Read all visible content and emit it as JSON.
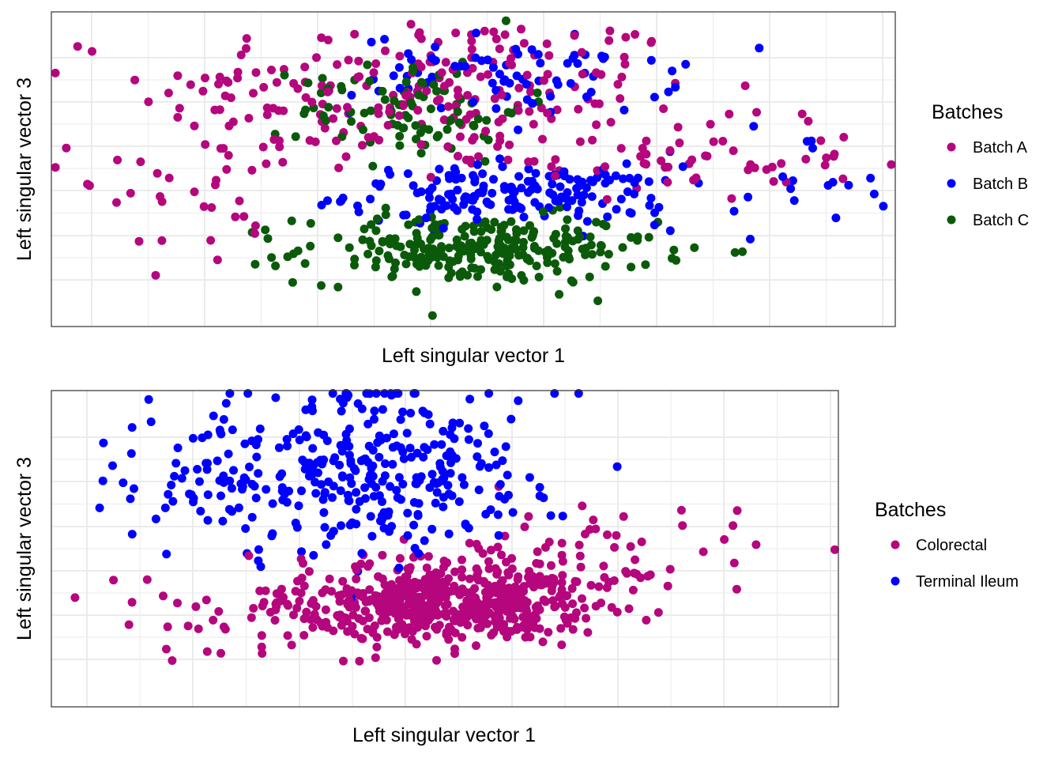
{
  "colors": {
    "magenta": "#B5067D",
    "blue": "#0000FF",
    "green": "#0A5A0A",
    "grid": "#EBEBEB",
    "border": "#333333"
  },
  "chart_data": [
    {
      "type": "scatter",
      "xlabel": "Left singular vector 1",
      "ylabel": "Left singular vector 3",
      "legend": {
        "title": "Batches",
        "position": "right"
      },
      "grid": true,
      "axis_ticks_labels_shown": false,
      "xlim": [
        -0.05,
        1.0
      ],
      "ylim": [
        -0.1,
        1.0
      ],
      "series": [
        {
          "name": "Batch A",
          "color": "#B5067D",
          "n_points_approx": 350
        },
        {
          "name": "Batch B",
          "color": "#0000FF",
          "n_points_approx": 300
        },
        {
          "name": "Batch C",
          "color": "#0A5A0A",
          "n_points_approx": 350
        }
      ]
    },
    {
      "type": "scatter",
      "xlabel": "Left singular vector 1",
      "ylabel": "Left singular vector 3",
      "legend": {
        "title": "Batches",
        "position": "right"
      },
      "grid": true,
      "axis_ticks_labels_shown": false,
      "xlim": [
        -0.05,
        1.05
      ],
      "ylim": [
        -0.1,
        1.0
      ],
      "series": [
        {
          "name": "Colorectal",
          "color": "#B5067D",
          "n_points_approx": 700
        },
        {
          "name": "Terminal Ileum",
          "color": "#0000FF",
          "n_points_approx": 450
        }
      ]
    }
  ]
}
